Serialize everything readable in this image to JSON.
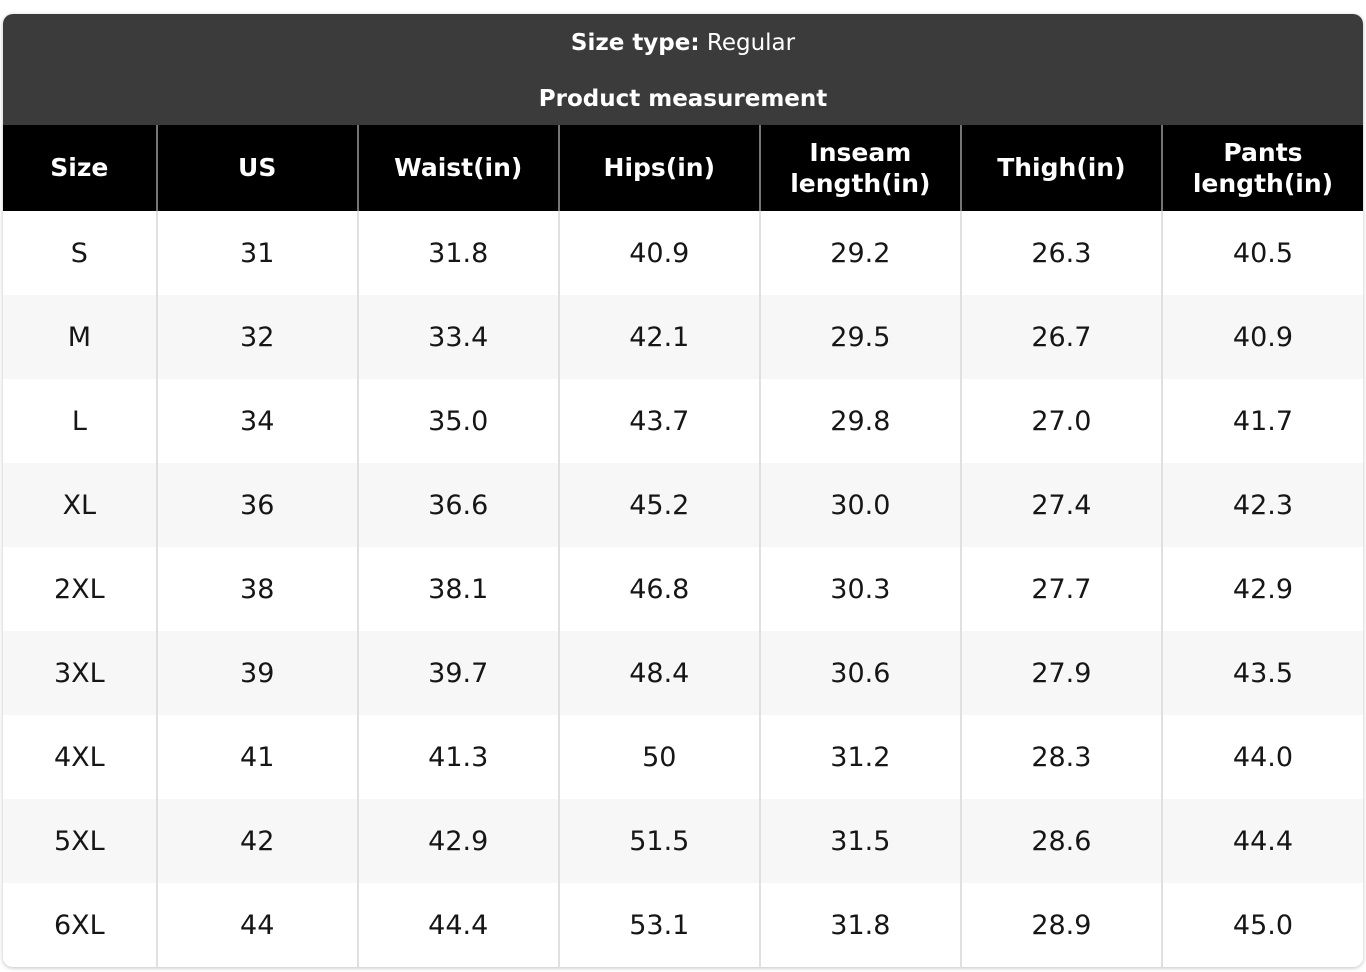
{
  "card": {
    "size_type_label": "Size type:",
    "size_type_value": " Regular",
    "title": "Product measurement"
  },
  "table": {
    "columns": [
      "Size",
      "US",
      "Waist(in)",
      "Hips(in)",
      "Inseam length(in)",
      "Thigh(in)",
      "Pants length(in)"
    ],
    "rows": [
      [
        "S",
        "31",
        "31.8",
        "40.9",
        "29.2",
        "26.3",
        "40.5"
      ],
      [
        "M",
        "32",
        "33.4",
        "42.1",
        "29.5",
        "26.7",
        "40.9"
      ],
      [
        "L",
        "34",
        "35.0",
        "43.7",
        "29.8",
        "27.0",
        "41.7"
      ],
      [
        "XL",
        "36",
        "36.6",
        "45.2",
        "30.0",
        "27.4",
        "42.3"
      ],
      [
        "2XL",
        "38",
        "38.1",
        "46.8",
        "30.3",
        "27.7",
        "42.9"
      ],
      [
        "3XL",
        "39",
        "39.7",
        "48.4",
        "30.6",
        "27.9",
        "43.5"
      ],
      [
        "4XL",
        "41",
        "41.3",
        "50",
        "31.2",
        "28.3",
        "44.0"
      ],
      [
        "5XL",
        "42",
        "42.9",
        "51.5",
        "31.5",
        "28.6",
        "44.4"
      ],
      [
        "6XL",
        "44",
        "44.4",
        "53.1",
        "31.8",
        "28.9",
        "45.0"
      ]
    ]
  },
  "colors": {
    "header_bar_bg": "#3b3b3b",
    "table_header_bg": "#000000",
    "table_header_text": "#ffffff",
    "row_alt_bg": "#f7f7f7",
    "body_text": "#161616",
    "header_divider": "#757575",
    "body_divider": "#e0e0e0"
  }
}
